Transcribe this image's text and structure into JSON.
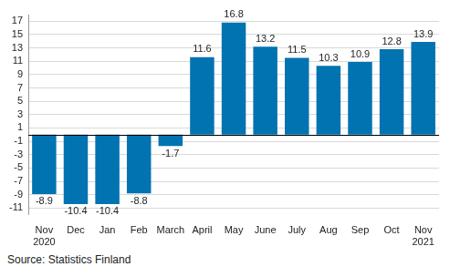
{
  "chart_data": {
    "type": "bar",
    "categories": [
      "Nov 2020",
      "Dec",
      "Jan",
      "Feb",
      "March",
      "April",
      "May",
      "June",
      "July",
      "Aug",
      "Sep",
      "Oct",
      "Nov 2021"
    ],
    "values": [
      -8.9,
      -10.4,
      -10.4,
      -8.8,
      -1.7,
      11.6,
      16.8,
      13.2,
      11.5,
      10.3,
      10.9,
      12.8,
      13.9
    ],
    "color": "#0073b0",
    "ylim": [
      -12,
      18
    ],
    "yticks": [
      -11,
      -9,
      -7,
      -5,
      -3,
      -1,
      1,
      3,
      5,
      7,
      9,
      11,
      13,
      15,
      17
    ],
    "grid": true,
    "data_labels": true,
    "annotations": [
      "Source: Statistics Finland"
    ]
  }
}
